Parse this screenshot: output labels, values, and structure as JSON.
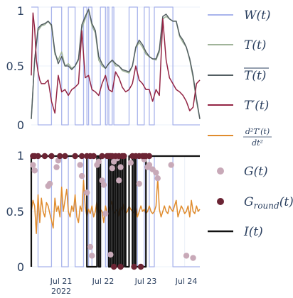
{
  "chart_data": [
    {
      "type": "line",
      "y_ticks": [
        "0",
        "0.5",
        "1"
      ],
      "ylim": [
        0,
        1
      ],
      "x_ticks": [],
      "grid": true,
      "legend": "right",
      "series": [
        {
          "name": "W(t)",
          "color": "#a9b4ec",
          "x": [
            0,
            4,
            4,
            12,
            12,
            18,
            18,
            22,
            22,
            26,
            26,
            31,
            31,
            33,
            33,
            34,
            34,
            36,
            36,
            41,
            41,
            44,
            44,
            45,
            45,
            46,
            46,
            48,
            48,
            49,
            49,
            58,
            58,
            63,
            63,
            67,
            67,
            70,
            70,
            73,
            73,
            84,
            84,
            100
          ],
          "values": [
            1,
            1,
            0,
            0,
            1,
            1,
            0,
            0,
            1,
            1,
            0,
            0,
            1,
            1,
            0,
            0,
            1,
            1,
            0,
            0,
            1,
            1,
            0,
            0,
            1,
            1,
            0,
            0,
            1,
            1,
            0,
            0,
            1,
            1,
            0,
            0,
            1,
            1,
            0,
            0,
            1,
            1,
            0,
            0
          ]
        },
        {
          "name": "T(t)",
          "color": "#a0b49a",
          "x": [
            0,
            2,
            4,
            6,
            8,
            10,
            12,
            14,
            16,
            18,
            20,
            22,
            24,
            26,
            28,
            30,
            32,
            34,
            36,
            38,
            40,
            42,
            44,
            46,
            48,
            50,
            52,
            54,
            56,
            58,
            60,
            62,
            64,
            66,
            68,
            70,
            72,
            74,
            76,
            78,
            80,
            82,
            84,
            86,
            88,
            90,
            92,
            94,
            96,
            98,
            100
          ],
          "values": [
            0.05,
            0.55,
            0.8,
            0.84,
            0.85,
            0.88,
            0.84,
            0.6,
            0.55,
            0.62,
            0.5,
            0.52,
            0.48,
            0.5,
            0.55,
            0.82,
            0.9,
            0.98,
            0.84,
            0.78,
            0.55,
            0.5,
            0.48,
            0.52,
            0.55,
            0.5,
            0.5,
            0.46,
            0.45,
            0.44,
            0.5,
            0.65,
            0.7,
            0.66,
            0.6,
            0.58,
            0.56,
            0.55,
            0.62,
            0.9,
            0.92,
            0.9,
            0.88,
            0.88,
            0.75,
            0.7,
            0.66,
            0.55,
            0.4,
            0.2,
            0.05
          ]
        },
        {
          "name": "\\overline{T(t)}",
          "color": "#535e62",
          "x": [
            0,
            2,
            4,
            6,
            8,
            10,
            12,
            14,
            16,
            18,
            20,
            22,
            24,
            26,
            28,
            30,
            32,
            34,
            36,
            38,
            40,
            42,
            44,
            46,
            48,
            50,
            52,
            54,
            56,
            58,
            60,
            62,
            64,
            66,
            68,
            70,
            72,
            74,
            76,
            78,
            80,
            82,
            84,
            86,
            88,
            90,
            92,
            94,
            96,
            98,
            100
          ],
          "values": [
            0.05,
            0.55,
            0.82,
            0.85,
            0.86,
            0.88,
            0.85,
            0.62,
            0.52,
            0.58,
            0.5,
            0.5,
            0.47,
            0.5,
            0.56,
            0.85,
            0.92,
            0.98,
            0.86,
            0.8,
            0.58,
            0.52,
            0.48,
            0.52,
            0.55,
            0.52,
            0.5,
            0.47,
            0.46,
            0.45,
            0.5,
            0.66,
            0.72,
            0.68,
            0.62,
            0.58,
            0.56,
            0.56,
            0.64,
            0.92,
            0.94,
            0.9,
            0.88,
            0.88,
            0.76,
            0.72,
            0.66,
            0.56,
            0.42,
            0.22,
            0.05
          ]
        },
        {
          "name": "T'(t)",
          "color": "#932444",
          "x": [
            0,
            1,
            2,
            3,
            4,
            5,
            6,
            8,
            10,
            12,
            14,
            16,
            18,
            20,
            22,
            24,
            26,
            28,
            30,
            32,
            34,
            36,
            38,
            40,
            42,
            44,
            46,
            48,
            50,
            52,
            54,
            56,
            58,
            60,
            62,
            64,
            66,
            68,
            70,
            72,
            74,
            76,
            78,
            80,
            82,
            84,
            86,
            88,
            90,
            92,
            94,
            96,
            98,
            100
          ],
          "values": [
            0.42,
            0.95,
            0.82,
            0.55,
            0.45,
            0.38,
            0.35,
            0.35,
            0.38,
            0.2,
            0.1,
            0.42,
            0.28,
            0.3,
            0.25,
            0.3,
            0.32,
            0.35,
            0.8,
            0.4,
            0.42,
            0.3,
            0.28,
            0.25,
            0.35,
            0.42,
            0.3,
            0.28,
            0.45,
            0.4,
            0.32,
            0.28,
            0.3,
            0.35,
            0.5,
            0.38,
            0.35,
            0.3,
            0.3,
            0.2,
            0.3,
            0.25,
            0.9,
            0.55,
            0.4,
            0.35,
            0.3,
            0.28,
            0.25,
            0.2,
            0.12,
            0.15,
            0.35,
            0.38
          ]
        }
      ],
      "legend_entries": [
        "W(t)",
        "T(t)",
        "̅T(t)",
        "T'(t)",
        "d²T'(t) / dt²"
      ]
    },
    {
      "type": "line",
      "y_ticks": [
        "0",
        "0.5",
        "1"
      ],
      "ylim": [
        0,
        1
      ],
      "x_ticks": [
        "Jul 21",
        "Jul 22",
        "Jul 23",
        "Jul 24"
      ],
      "x_tick_sub": "2022",
      "grid": true,
      "legend": "right",
      "series": [
        {
          "name": "d²T'(t)/dt²",
          "color": "#e08c2e",
          "x": [
            0,
            1,
            2,
            3,
            4,
            5,
            6,
            7,
            8,
            9,
            10,
            11,
            12,
            13,
            14,
            15,
            16,
            17,
            18,
            19,
            20,
            21,
            22,
            23,
            24,
            25,
            26,
            27,
            28,
            29,
            30,
            31,
            32,
            33,
            34,
            35,
            36,
            37,
            38,
            39,
            40,
            41,
            42,
            43,
            44,
            45,
            46,
            47,
            48,
            49,
            50,
            51,
            52,
            53,
            54,
            55,
            56,
            57,
            58,
            59,
            60,
            61,
            62,
            63,
            64,
            65,
            66,
            67,
            68,
            69,
            70,
            71,
            72,
            73,
            74,
            75,
            76,
            77,
            78,
            79,
            80,
            81,
            82,
            83,
            84,
            85,
            86,
            87,
            88,
            89,
            90,
            91,
            92,
            93,
            94,
            95,
            96,
            97,
            98,
            99,
            100
          ],
          "values": [
            0.5,
            0.6,
            0.55,
            0.3,
            0.65,
            0.4,
            0.62,
            0.5,
            0.45,
            0.58,
            0.55,
            0.48,
            0.42,
            0.35,
            0.62,
            0.5,
            0.55,
            0.45,
            0.72,
            0.5,
            0.6,
            0.7,
            0.5,
            0.45,
            0.55,
            0.5,
            0.65,
            0.45,
            0.4,
            0.55,
            0.5,
            0.78,
            0.55,
            0.45,
            0.52,
            0.48,
            0.55,
            0.45,
            0.5,
            0.6,
            0.48,
            0.52,
            0.5,
            0.4,
            0.55,
            0.48,
            0.5,
            0.55,
            0.6,
            0.48,
            0.5,
            0.52,
            0.45,
            0.55,
            0.5,
            0.58,
            0.48,
            0.5,
            0.55,
            0.52,
            0.5,
            0.48,
            0.55,
            0.45,
            0.5,
            0.55,
            0.5,
            0.52,
            0.48,
            0.5,
            0.55,
            0.5,
            0.48,
            0.5,
            0.55,
            0.8,
            0.52,
            0.45,
            0.5,
            0.55,
            0.5,
            0.48,
            0.55,
            0.52,
            0.5,
            0.55,
            0.6,
            0.45,
            0.5,
            0.55,
            0.52,
            0.48,
            0.5,
            0.55,
            0.45,
            0.6,
            0.5,
            0.48,
            0.55,
            0.5,
            0.52
          ]
        },
        {
          "name": "G(t)",
          "color": "#c8a9b8",
          "x": [
            1,
            2,
            10,
            11,
            15,
            16,
            29,
            30,
            33,
            35,
            36,
            39,
            40,
            42,
            43,
            44,
            47,
            48,
            49,
            51,
            52,
            53,
            59,
            64,
            67,
            69,
            70,
            72,
            74,
            75,
            83,
            92,
            96
          ],
          "values": [
            0.92,
            0.87,
            0.73,
            0.75,
            0.9,
            0.96,
            0.92,
            0.82,
            0.67,
            0.18,
            0.1,
            0.92,
            0.95,
            0.78,
            0.74,
            0.48,
            0.11,
            0.89,
            0.95,
            0.98,
            0.78,
            0.9,
            0.94,
            0.75,
            0.97,
            0.9,
            0.92,
            0.88,
            0.85,
            0.8,
            0.92,
            0.1,
            0.08
          ]
        },
        {
          "name": "G_{round}(t)",
          "color": "#6b2434",
          "x": [
            1,
            2,
            4,
            8,
            12,
            17,
            20,
            26,
            30,
            33,
            35,
            37,
            42,
            45,
            46,
            47,
            48,
            49,
            50,
            52,
            53,
            54,
            55,
            60,
            61,
            62,
            64,
            65,
            66,
            67,
            68,
            70
          ],
          "values": [
            1,
            1,
            1,
            1,
            1,
            1,
            1,
            1,
            1,
            1,
            1,
            1,
            1,
            1,
            1,
            1,
            1,
            0,
            1,
            1,
            0,
            1,
            1,
            1,
            0,
            1,
            1,
            0,
            1,
            1,
            1,
            1
          ]
        },
        {
          "name": "I(t)",
          "color": "#111111",
          "x": [
            0,
            0,
            33,
            33,
            39,
            39,
            40,
            40,
            41,
            41,
            46,
            46,
            47,
            47,
            48,
            48,
            49,
            49,
            50,
            50,
            51,
            51,
            52,
            52,
            53,
            53,
            54,
            54,
            55,
            55,
            56,
            56,
            58,
            58,
            60,
            60,
            61,
            61,
            62,
            62,
            68,
            68,
            70,
            70,
            100
          ],
          "values": [
            0,
            1,
            1,
            0,
            0,
            1,
            1,
            0,
            0,
            1,
            1,
            0,
            0,
            1,
            1,
            0,
            0,
            1,
            1,
            0,
            0,
            1,
            1,
            0,
            0,
            1,
            1,
            0,
            0,
            1,
            1,
            0,
            0,
            1,
            1,
            0,
            0,
            1,
            1,
            0,
            0,
            1,
            1,
            1,
            1
          ]
        },
        {
          "name": "W(t)",
          "color": "#a9b4ec",
          "x": [
            0,
            4,
            4,
            12,
            12,
            18,
            18,
            22,
            22,
            26,
            26,
            31,
            31,
            33,
            33,
            34,
            34,
            36,
            36,
            41,
            41,
            44,
            44,
            45,
            45,
            46,
            46,
            48,
            48,
            49,
            49,
            58,
            58,
            63,
            63,
            67,
            67,
            70,
            70,
            73,
            73,
            84,
            84,
            100
          ],
          "values": [
            1,
            1,
            0,
            0,
            1,
            1,
            0,
            0,
            1,
            1,
            0,
            0,
            1,
            1,
            0,
            0,
            1,
            1,
            0,
            0,
            1,
            1,
            0,
            0,
            1,
            1,
            0,
            0,
            1,
            1,
            0,
            0,
            1,
            1,
            0,
            0,
            1,
            1,
            0,
            0,
            1,
            1,
            0,
            0
          ]
        }
      ],
      "legend_entries": [
        "G(t)",
        "G_round(t)",
        "I(t)"
      ]
    }
  ],
  "legend": {
    "w": "W(t)",
    "t": "T(t)",
    "tbar": "T(t)",
    "tprime": "T′(t)",
    "d2_num": "d²T′(t)",
    "d2_den": "dt²",
    "g": "G(t)",
    "ground": "G",
    "ground_sub": "round",
    "ground_tail": "(t)",
    "i": "I(t)"
  },
  "axes": {
    "top_y": [
      "0",
      "0.5",
      "1"
    ],
    "bottom_y": [
      "0",
      "0.5",
      "1"
    ],
    "bottom_x": [
      "Jul 21",
      "Jul 22",
      "Jul 23",
      "Jul 24"
    ],
    "bottom_x_sub": "2022"
  }
}
